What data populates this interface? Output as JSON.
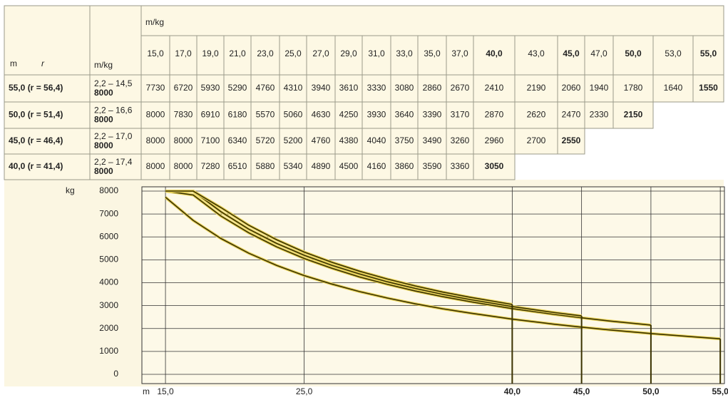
{
  "table": {
    "corner": [
      "m",
      "r"
    ],
    "unit_header": "m/kg",
    "unit_subheader": "m/kg",
    "columns": [
      "15,0",
      "17,0",
      "19,0",
      "21,0",
      "23,0",
      "25,0",
      "27,0",
      "29,0",
      "31,0",
      "33,0",
      "35,0",
      "37,0",
      "40,0",
      "43,0",
      "45,0",
      "47,0",
      "50,0",
      "53,0",
      "55,0"
    ],
    "rows": [
      {
        "label": "55,0 (r = 56,4)",
        "range": "2,2 – 14,5",
        "max": "8000",
        "values": [
          7730,
          6720,
          5930,
          5290,
          4760,
          4310,
          3940,
          3610,
          3330,
          3080,
          2860,
          2670,
          2410,
          2190,
          2060,
          1940,
          1780,
          1640,
          1550
        ]
      },
      {
        "label": "50,0 (r = 51,4)",
        "range": "2,2 – 16,6",
        "max": "8000",
        "values": [
          8000,
          7830,
          6910,
          6180,
          5570,
          5060,
          4630,
          4250,
          3930,
          3640,
          3390,
          3170,
          2870,
          2620,
          2470,
          2330,
          2150
        ]
      },
      {
        "label": "45,0 (r = 46,4)",
        "range": "2,2 – 17,0",
        "max": "8000",
        "values": [
          8000,
          8000,
          7100,
          6340,
          5720,
          5200,
          4760,
          4380,
          4040,
          3750,
          3490,
          3260,
          2960,
          2700,
          2550
        ]
      },
      {
        "label": "40,0 (r = 41,4)",
        "range": "2,2 – 17,4",
        "max": "8000",
        "values": [
          8000,
          8000,
          7280,
          6510,
          5880,
          5340,
          4890,
          4500,
          4160,
          3860,
          3590,
          3360,
          3050
        ]
      }
    ]
  },
  "chart_data": {
    "type": "line",
    "y_label": "kg",
    "x_label": "m",
    "x": [
      15,
      17,
      19,
      21,
      23,
      25,
      27,
      29,
      31,
      33,
      35,
      37,
      40,
      43,
      45,
      47,
      50,
      53,
      55
    ],
    "series": [
      {
        "color": "#3a3200",
        "values": [
          7730,
          6720,
          5930,
          5290,
          4760,
          4310,
          3940,
          3610,
          3330,
          3080,
          2860,
          2670,
          2410,
          2190,
          2060,
          1940,
          1780,
          1640,
          1550
        ]
      },
      {
        "color": "#3a3200",
        "values": [
          8000,
          7830,
          6910,
          6180,
          5570,
          5060,
          4630,
          4250,
          3930,
          3640,
          3390,
          3170,
          2870,
          2620,
          2470,
          2330,
          2150,
          null,
          null
        ]
      },
      {
        "color": "#3a3200",
        "values": [
          8000,
          8000,
          7100,
          6340,
          5720,
          5200,
          4760,
          4380,
          4040,
          3750,
          3490,
          3260,
          2960,
          2700,
          2550,
          null,
          null,
          null,
          null
        ]
      },
      {
        "color": "#3a3200",
        "values": [
          8000,
          8000,
          7280,
          6510,
          5880,
          5340,
          4890,
          4500,
          4160,
          3860,
          3590,
          3360,
          3050,
          null,
          null,
          null,
          null,
          null,
          null
        ]
      }
    ],
    "xlim": [
      13.3,
      55.3
    ],
    "ylim": [
      0,
      8000
    ],
    "xticks": [
      {
        "value": 15,
        "label": "15,0"
      },
      {
        "value": 25,
        "label": "25,0"
      },
      {
        "value": 40,
        "label": "40,0"
      },
      {
        "value": 45,
        "label": "45,0"
      },
      {
        "value": 50,
        "label": "50,0"
      },
      {
        "value": 55,
        "label": "55,0"
      }
    ],
    "yticks": [
      0,
      1000,
      2000,
      3000,
      4000,
      5000,
      6000,
      7000,
      8000
    ],
    "grid": true
  }
}
